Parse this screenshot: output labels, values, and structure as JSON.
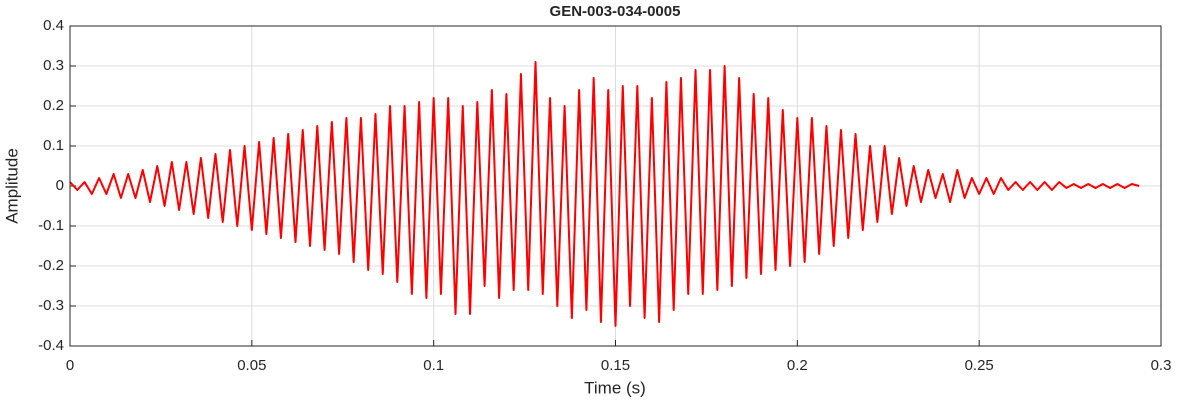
{
  "chart_data": {
    "type": "line",
    "title": "GEN-003-034-0005",
    "x_label": "Time (s)",
    "y_label": "Amplitude",
    "x": [
      0,
      0.002,
      0.004,
      0.006,
      0.008,
      0.01,
      0.012,
      0.014,
      0.016,
      0.018,
      0.02,
      0.022,
      0.024,
      0.026,
      0.028,
      0.03,
      0.032,
      0.034,
      0.036,
      0.038,
      0.04,
      0.042,
      0.044,
      0.046,
      0.048,
      0.05,
      0.052,
      0.054,
      0.056,
      0.058,
      0.06,
      0.062,
      0.064,
      0.066,
      0.068,
      0.07,
      0.072,
      0.074,
      0.076,
      0.078,
      0.08,
      0.082,
      0.084,
      0.086,
      0.088,
      0.09,
      0.092,
      0.094,
      0.096,
      0.098,
      0.1,
      0.102,
      0.104,
      0.106,
      0.108,
      0.11,
      0.112,
      0.114,
      0.116,
      0.118,
      0.12,
      0.122,
      0.124,
      0.126,
      0.128,
      0.13,
      0.132,
      0.134,
      0.136,
      0.138,
      0.14,
      0.142,
      0.144,
      0.146,
      0.148,
      0.15,
      0.152,
      0.154,
      0.156,
      0.158,
      0.16,
      0.162,
      0.164,
      0.166,
      0.168,
      0.17,
      0.172,
      0.174,
      0.176,
      0.178,
      0.18,
      0.182,
      0.184,
      0.186,
      0.188,
      0.19,
      0.192,
      0.194,
      0.196,
      0.198,
      0.2,
      0.202,
      0.204,
      0.206,
      0.208,
      0.21,
      0.212,
      0.214,
      0.216,
      0.218,
      0.22,
      0.222,
      0.224,
      0.226,
      0.228,
      0.23,
      0.232,
      0.234,
      0.236,
      0.238,
      0.24,
      0.242,
      0.244,
      0.246,
      0.248,
      0.25,
      0.252,
      0.254,
      0.256,
      0.258,
      0.26,
      0.262,
      0.264,
      0.266,
      0.268,
      0.27,
      0.272,
      0.274,
      0.276,
      0.278,
      0.28,
      0.282,
      0.284,
      0.286,
      0.288,
      0.29,
      0.292,
      0.294
    ],
    "values": [
      0.01,
      -0.01,
      0.01,
      -0.02,
      0.02,
      -0.02,
      0.03,
      -0.03,
      0.03,
      -0.03,
      0.04,
      -0.04,
      0.05,
      -0.05,
      0.06,
      -0.06,
      0.06,
      -0.07,
      0.07,
      -0.08,
      0.08,
      -0.09,
      0.09,
      -0.1,
      0.1,
      -0.11,
      0.11,
      -0.12,
      0.12,
      -0.13,
      0.13,
      -0.14,
      0.14,
      -0.15,
      0.15,
      -0.16,
      0.16,
      -0.17,
      0.17,
      -0.19,
      0.17,
      -0.21,
      0.18,
      -0.22,
      0.2,
      -0.24,
      0.2,
      -0.27,
      0.21,
      -0.28,
      0.22,
      -0.27,
      0.22,
      -0.32,
      0.2,
      -0.32,
      0.21,
      -0.25,
      0.24,
      -0.28,
      0.23,
      -0.26,
      0.28,
      -0.26,
      0.31,
      -0.27,
      0.22,
      -0.3,
      0.2,
      -0.33,
      0.24,
      -0.31,
      0.27,
      -0.34,
      0.24,
      -0.35,
      0.25,
      -0.3,
      0.25,
      -0.33,
      0.22,
      -0.34,
      0.26,
      -0.31,
      0.27,
      -0.27,
      0.29,
      -0.27,
      0.29,
      -0.26,
      0.3,
      -0.25,
      0.27,
      -0.23,
      0.23,
      -0.22,
      0.22,
      -0.21,
      0.19,
      -0.2,
      0.17,
      -0.19,
      0.17,
      -0.17,
      0.15,
      -0.15,
      0.14,
      -0.13,
      0.13,
      -0.11,
      0.1,
      -0.09,
      0.1,
      -0.07,
      0.07,
      -0.05,
      0.05,
      -0.04,
      0.04,
      -0.03,
      0.03,
      -0.04,
      0.04,
      -0.03,
      0.02,
      -0.02,
      0.02,
      -0.02,
      0.02,
      -0.01,
      0.01,
      -0.01,
      0.01,
      -0.01,
      0.01,
      -0.01,
      0.01,
      -0.005,
      0.005,
      -0.005,
      0.005,
      -0.005,
      0.005,
      -0.005,
      0.005,
      -0.005,
      0.005,
      0
    ],
    "color": "#ff0000",
    "xlim": [
      0,
      0.3
    ],
    "xticks": [
      0,
      0.05,
      0.1,
      0.15,
      0.2,
      0.25,
      0.3
    ],
    "ylim": [
      -0.4,
      0.4
    ],
    "yticks": [
      -0.4,
      -0.3,
      -0.2,
      -0.1,
      0,
      0.1,
      0.2,
      0.3,
      0.4
    ],
    "grid": true
  }
}
